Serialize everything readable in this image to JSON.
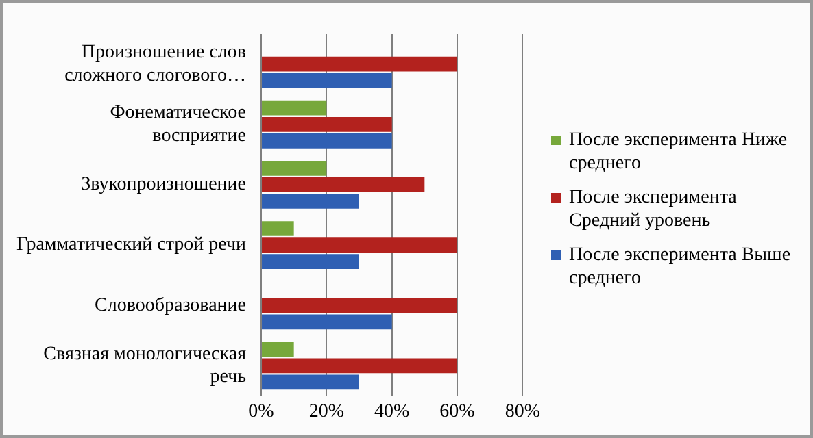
{
  "chart_data": {
    "type": "bar",
    "orientation": "horizontal",
    "categories": [
      "Произношение слов сложного слогового…",
      "Фонематическое восприятие",
      "Звукопроизношение",
      "Грамматический строй речи",
      "Словообразование",
      "Связная монологическая речь"
    ],
    "series": [
      {
        "name": "После эксперимента Ниже среднего",
        "color": "#77a83b",
        "values": [
          0,
          20,
          20,
          10,
          0,
          10
        ]
      },
      {
        "name": "После эксперимента Средний уровень",
        "color": "#b3221e",
        "values": [
          60,
          40,
          50,
          60,
          60,
          60
        ]
      },
      {
        "name": "После эксперимента Выше среднего",
        "color": "#2f5fb3",
        "values": [
          40,
          40,
          30,
          30,
          40,
          30
        ]
      }
    ],
    "xlim": [
      0,
      80
    ],
    "xticks": [
      {
        "value": 0,
        "label": "0%"
      },
      {
        "value": 20,
        "label": "20%"
      },
      {
        "value": 40,
        "label": "40%"
      },
      {
        "value": 60,
        "label": "60%"
      },
      {
        "value": 80,
        "label": "80%"
      }
    ],
    "grid": "x",
    "legend": "right"
  }
}
